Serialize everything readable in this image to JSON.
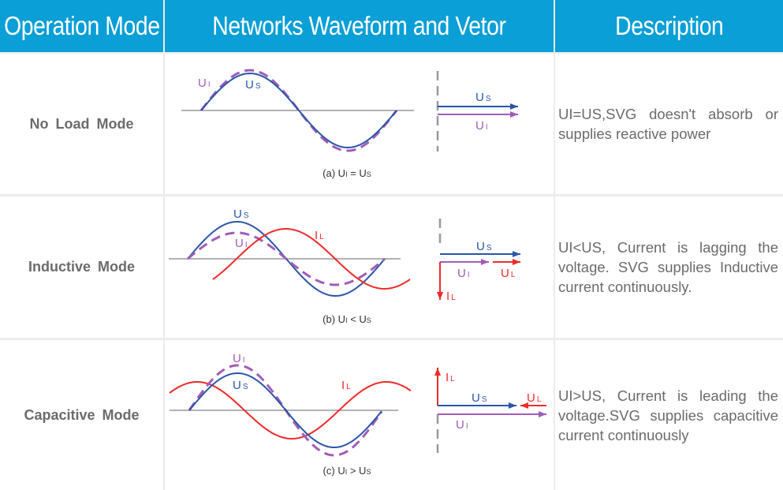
{
  "header": {
    "col1": "Operation Mode",
    "col2": "Networks Waveform and Vetor",
    "col3": "Description"
  },
  "colors": {
    "header_bg": "#0a9fd6",
    "us": "#2a55a8",
    "ui": "#a05cb8",
    "il": "#ee2a2a",
    "axis": "#999999"
  },
  "rows": [
    {
      "mode": "No Load  Mode",
      "description": "UI=US,SVG doesn't absorb or supplies reactive power",
      "caption": {
        "prefix": "(a)",
        "lhs": "U",
        "lhs_sub": "I",
        "op": "=",
        "rhs": "U",
        "rhs_sub": "S"
      },
      "labels": {
        "ui": "U",
        "ui_sub": "I",
        "us": "U",
        "us_sub": "S"
      }
    },
    {
      "mode": "Inductive  Mode",
      "description": "UI<US, Current is lagging the voltage. SVG supplies Inductive current continuously.",
      "caption": {
        "prefix": "(b)",
        "lhs": "U",
        "lhs_sub": "I",
        "op": "<",
        "rhs": "U",
        "rhs_sub": "S"
      },
      "labels": {
        "ui": "U",
        "ui_sub": "I",
        "us": "U",
        "us_sub": "S",
        "il": "I",
        "il_sub": "L",
        "ul": "U",
        "ul_sub": "L"
      }
    },
    {
      "mode": "Capacitive  Mode",
      "description": "UI>US, Current is leading the voltage.SVG supplies capacitive current continuously",
      "caption": {
        "prefix": "(c)",
        "lhs": "U",
        "lhs_sub": "I",
        "op": ">",
        "rhs": "U",
        "rhs_sub": "S"
      },
      "labels": {
        "ui": "U",
        "ui_sub": "I",
        "us": "U",
        "us_sub": "S",
        "il": "I",
        "il_sub": "L",
        "ul": "U",
        "ul_sub": "L"
      }
    }
  ]
}
